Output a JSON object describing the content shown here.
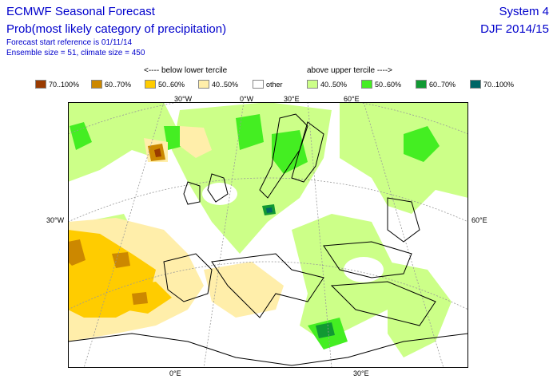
{
  "header": {
    "title": "ECMWF Seasonal Forecast",
    "subtitle": "Prob(most likely category of precipitation)",
    "start_reference": "Forecast start reference is 01/11/14",
    "ensemble": "Ensemble size = 51, climate size = 450",
    "system": "System 4",
    "season": "DJF 2014/15"
  },
  "legend": {
    "below_label": "<---- below lower tercile",
    "above_label": "above upper tercile ---->",
    "items": [
      {
        "label": "70..100%",
        "color": "#9a3b00"
      },
      {
        "label": "60..70%",
        "color": "#cc8800"
      },
      {
        "label": "50..60%",
        "color": "#ffcc00"
      },
      {
        "label": "40..50%",
        "color": "#ffeeaa"
      },
      {
        "label": "other",
        "color": "#ffffff"
      },
      {
        "label": "40..50%",
        "color": "#ccff88"
      },
      {
        "label": "50..60%",
        "color": "#44ee22"
      },
      {
        "label": "60..70%",
        "color": "#119933"
      },
      {
        "label": "70..100%",
        "color": "#006666"
      }
    ]
  },
  "map_labels": {
    "top": [
      "30°W",
      "0°W",
      "30°E",
      "60°E"
    ],
    "left": "30°W",
    "right": "60°E",
    "bottom": [
      "0°E",
      "30°E"
    ]
  }
}
